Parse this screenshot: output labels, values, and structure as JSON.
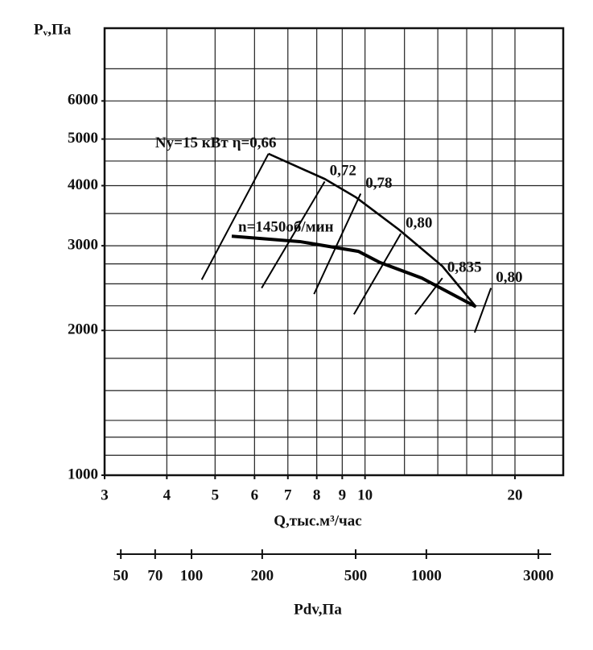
{
  "chart_data": {
    "type": "line",
    "xlog": true,
    "ylog": true,
    "ylabel": "Pᵥ,Па",
    "xlabel": "Q,тыс.м³/час",
    "xlim": [
      3,
      25
    ],
    "ylim": [
      1000,
      8500
    ],
    "xticks": [
      3,
      4,
      5,
      6,
      7,
      8,
      9,
      10,
      20
    ],
    "yticks": [
      1000,
      2000,
      3000,
      4000,
      5000,
      6000
    ],
    "xgrid": [
      4,
      5,
      6,
      7,
      8,
      9,
      10,
      12,
      14,
      16,
      18,
      20
    ],
    "ygrid": [
      1100,
      1200,
      1300,
      1500,
      1750,
      2000,
      2250,
      2500,
      2750,
      3000,
      3500,
      4000,
      4500,
      5000,
      6000,
      7000
    ],
    "grid": true,
    "series": [
      {
        "name": "n=1450об/мин",
        "color": "#000000",
        "x": [
          5.4,
          7.4,
          9.7,
          10.7,
          13.0,
          16.7
        ],
        "values": [
          3140,
          3060,
          2920,
          2770,
          2570,
          2240
        ]
      },
      {
        "name": "Nу=15 кВт",
        "color": "#000000",
        "x": [
          6.4,
          8.3,
          9.6,
          11.7,
          14.3,
          16.7
        ],
        "values": [
          4660,
          4130,
          3780,
          3240,
          2720,
          2240
        ]
      },
      {
        "name": "η=0,66",
        "color": "#000000",
        "x": [
          4.7,
          6.4
        ],
        "values": [
          2550,
          4660
        ]
      },
      {
        "name": "0,72",
        "color": "#000000",
        "x": [
          6.2,
          8.3
        ],
        "values": [
          2450,
          4080
        ]
      },
      {
        "name": "0,78",
        "color": "#000000",
        "x": [
          7.9,
          9.8
        ],
        "values": [
          2380,
          3850
        ]
      },
      {
        "name": "0,80",
        "color": "#000000",
        "x": [
          9.5,
          11.8
        ],
        "values": [
          2160,
          3180
        ]
      },
      {
        "name": "0,835",
        "color": "#000000",
        "x": [
          12.6,
          14.3
        ],
        "values": [
          2160,
          2570
        ]
      },
      {
        "name": "0,80",
        "color": "#000000",
        "x": [
          16.6,
          17.9
        ],
        "values": [
          1980,
          2450
        ]
      }
    ],
    "secondary_x_axis": {
      "label": "Pdv,Па",
      "xlog": true,
      "xlim": [
        48,
        3400
      ],
      "xticks": [
        50,
        70,
        100,
        200,
        500,
        1000,
        3000
      ]
    }
  }
}
